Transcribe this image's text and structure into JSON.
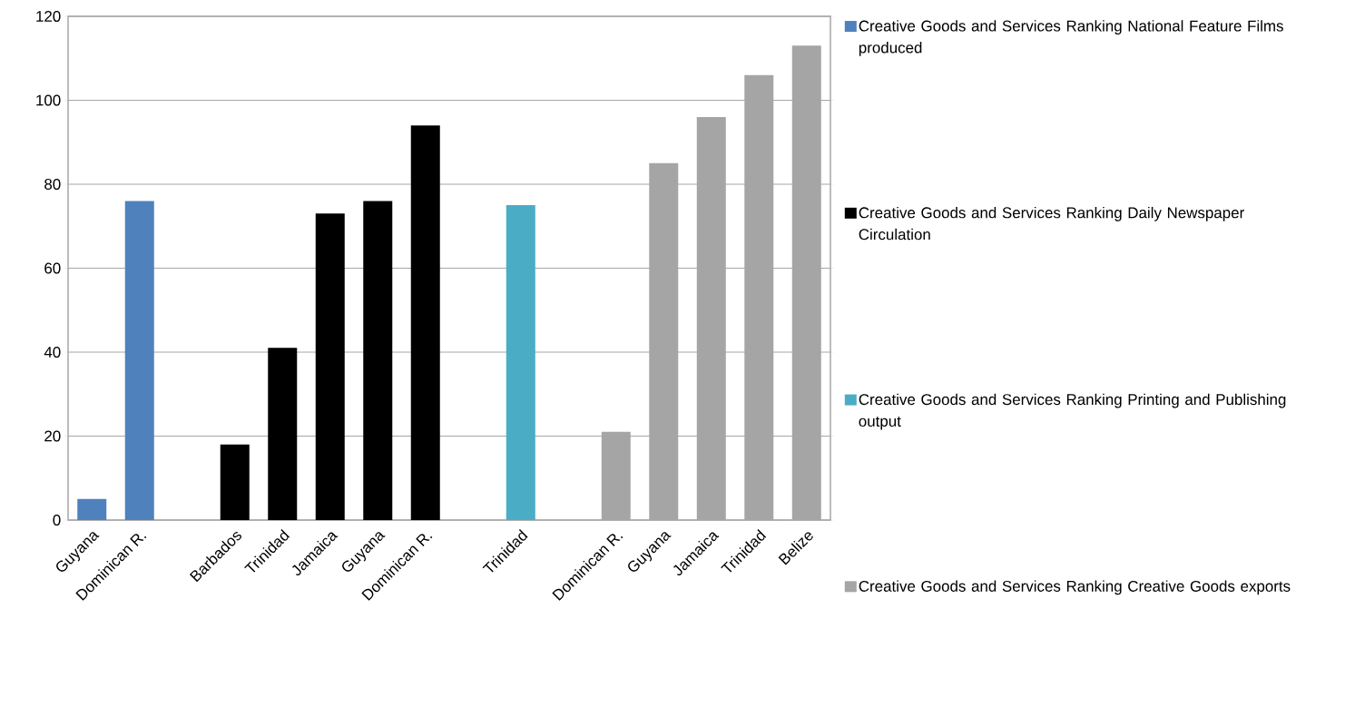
{
  "chart_data": {
    "type": "bar",
    "categories": [
      "Guyana",
      "Dominican R.",
      null,
      "Barbados",
      "Trinidad",
      "Jamaica",
      "Guyana",
      "Dominican R.",
      null,
      "Trinidad",
      null,
      "Dominican R.",
      "Guyana",
      "Jamaica",
      "Trinidad",
      "Belize"
    ],
    "series": [
      {
        "name": "Creative Goods and Services Ranking National Feature Films produced",
        "color": "#4f81bd",
        "values": [
          5,
          76,
          null,
          null,
          null,
          null,
          null,
          null,
          null,
          null,
          null,
          null,
          null,
          null,
          null,
          null
        ]
      },
      {
        "name": "Creative Goods and Services Ranking Daily Newspaper Circulation",
        "color": "#000000",
        "values": [
          null,
          null,
          null,
          18,
          41,
          73,
          76,
          94,
          null,
          null,
          null,
          null,
          null,
          null,
          null,
          null
        ]
      },
      {
        "name": "Creative Goods and Services Ranking Printing and Publishing output",
        "color": "#4bacc6",
        "values": [
          null,
          null,
          null,
          null,
          null,
          null,
          null,
          null,
          null,
          75,
          null,
          null,
          null,
          null,
          null,
          null
        ]
      },
      {
        "name": "Creative Goods and Services Ranking Creative Goods exports",
        "color": "#a5a5a5",
        "values": [
          null,
          null,
          null,
          null,
          null,
          null,
          null,
          null,
          null,
          null,
          null,
          21,
          85,
          96,
          106,
          113
        ]
      }
    ],
    "ylim": [
      0,
      120
    ],
    "yticks": [
      0,
      20,
      40,
      60,
      80,
      100,
      120
    ],
    "grid": "y",
    "legend": "right"
  }
}
